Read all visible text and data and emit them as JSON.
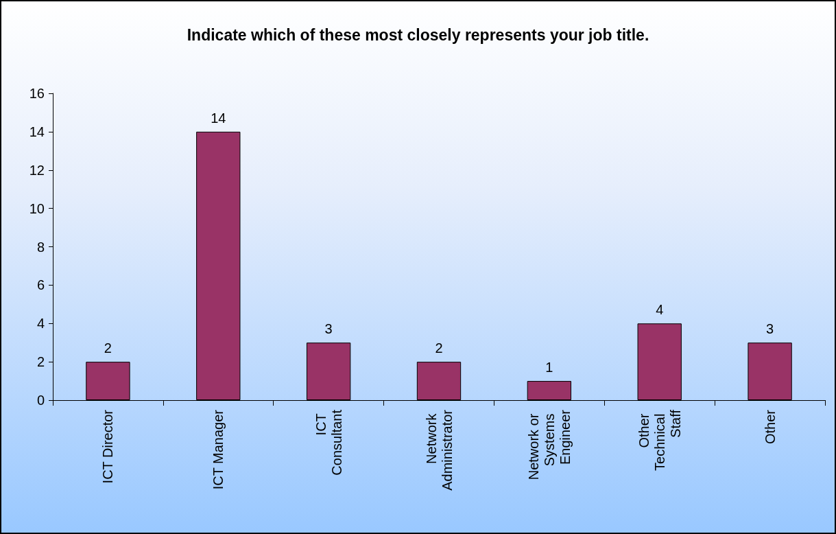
{
  "chart_data": {
    "type": "bar",
    "title": "Indicate which of these most closely represents your job title.",
    "categories": [
      "ICT Director",
      "ICT Manager",
      "ICT Consultant",
      "Network Administrator",
      "Network or Systems Engineer",
      "Other Technical Staff",
      "Other"
    ],
    "values": [
      2,
      14,
      3,
      2,
      1,
      4,
      3
    ],
    "color": "#993366",
    "ylim": [
      0,
      16
    ],
    "yticks": [
      0,
      2,
      4,
      6,
      8,
      10,
      12,
      14,
      16
    ],
    "grid": false,
    "data_labels": true
  }
}
